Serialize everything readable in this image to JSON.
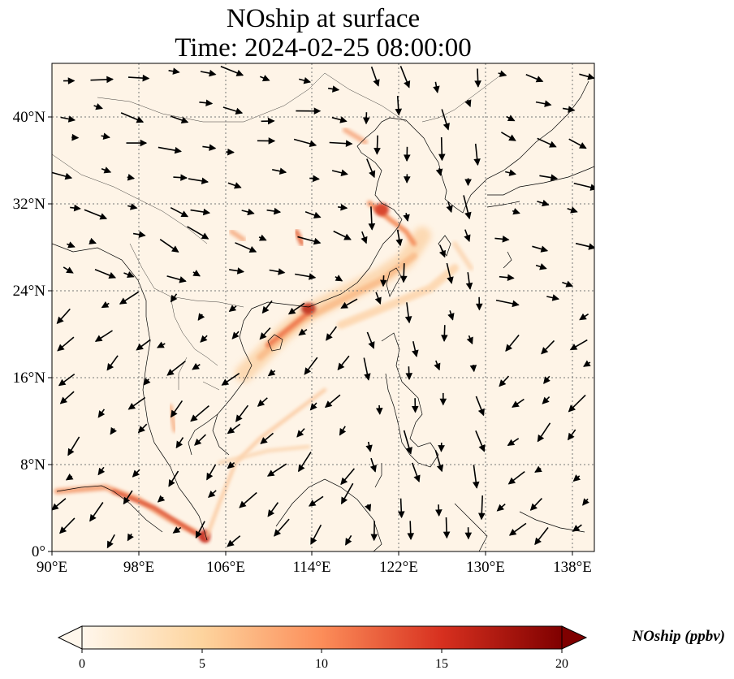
{
  "title": "NOship at surface",
  "subtitle": "Time: 2024-02-25 08:00:00",
  "map": {
    "projection": "PlateCarree",
    "lon_range": [
      90,
      140
    ],
    "lat_range": [
      0,
      45
    ],
    "x_ticks": [
      "90°E",
      "98°E",
      "106°E",
      "114°E",
      "122°E",
      "130°E",
      "138°E"
    ],
    "y_ticks": [
      "0°",
      "8°N",
      "16°N",
      "24°N",
      "32°N",
      "40°N"
    ],
    "gridlines": "dotted",
    "background_color": "#fef3e6",
    "wind_vectors": "black arrows"
  },
  "colorbar": {
    "label": "NOship (ppbv)",
    "ticks": [
      "0",
      "5",
      "10",
      "15",
      "20"
    ],
    "range": [
      0,
      20
    ],
    "extend": "both",
    "colormap": "OrRd",
    "colors": [
      "#fff7ec",
      "#fdd49e",
      "#fc8d59",
      "#d7301f",
      "#7f0000"
    ]
  }
}
